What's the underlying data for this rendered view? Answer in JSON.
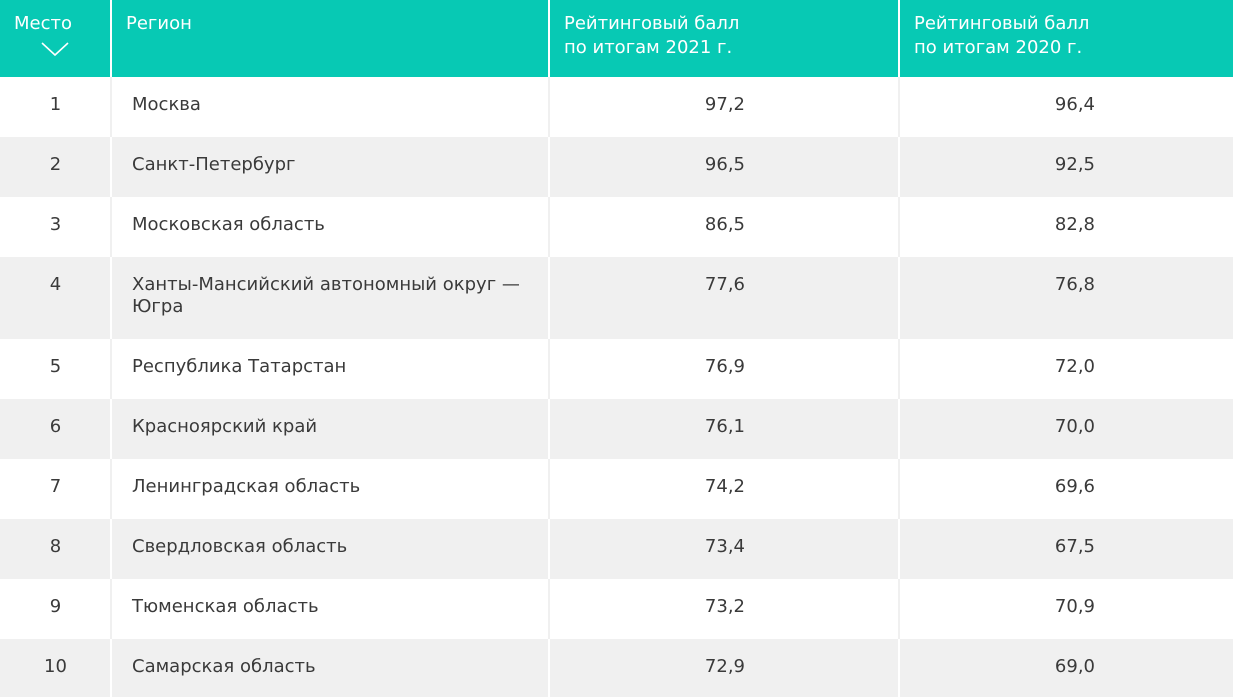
{
  "header": {
    "place": "Место",
    "region": "Регион",
    "score2021_line1": "Рейтинговый балл",
    "score2021_line2": "по итогам 2021 г.",
    "score2020_line1": "Рейтинговый балл",
    "score2020_line2": "по итогам 2020 г.",
    "sort_icon": "chevron-down-icon"
  },
  "rows": [
    {
      "place": "1",
      "region": "Москва",
      "score2021": "97,2",
      "score2020": "96,4"
    },
    {
      "place": "2",
      "region": "Санкт-Петербург",
      "score2021": "96,5",
      "score2020": "92,5"
    },
    {
      "place": "3",
      "region": "Московская область",
      "score2021": "86,5",
      "score2020": "82,8"
    },
    {
      "place": "4",
      "region": "Ханты-Мансийский автономный округ — Югра",
      "score2021": "77,6",
      "score2020": "76,8"
    },
    {
      "place": "5",
      "region": "Республика Татарстан",
      "score2021": "76,9",
      "score2020": "72,0"
    },
    {
      "place": "6",
      "region": "Красноярский край",
      "score2021": "76,1",
      "score2020": "70,0"
    },
    {
      "place": "7",
      "region": "Ленинградская область",
      "score2021": "74,2",
      "score2020": "69,6"
    },
    {
      "place": "8",
      "region": "Свердловская область",
      "score2021": "73,4",
      "score2020": "67,5"
    },
    {
      "place": "9",
      "region": "Тюменская область",
      "score2021": "73,2",
      "score2020": "70,9"
    },
    {
      "place": "10",
      "region": "Самарская область",
      "score2021": "72,9",
      "score2020": "69,0"
    }
  ],
  "colors": {
    "header_bg": "#07c9b4",
    "row_alt_bg": "#f0f0f0",
    "text": "#3a3a3a"
  }
}
